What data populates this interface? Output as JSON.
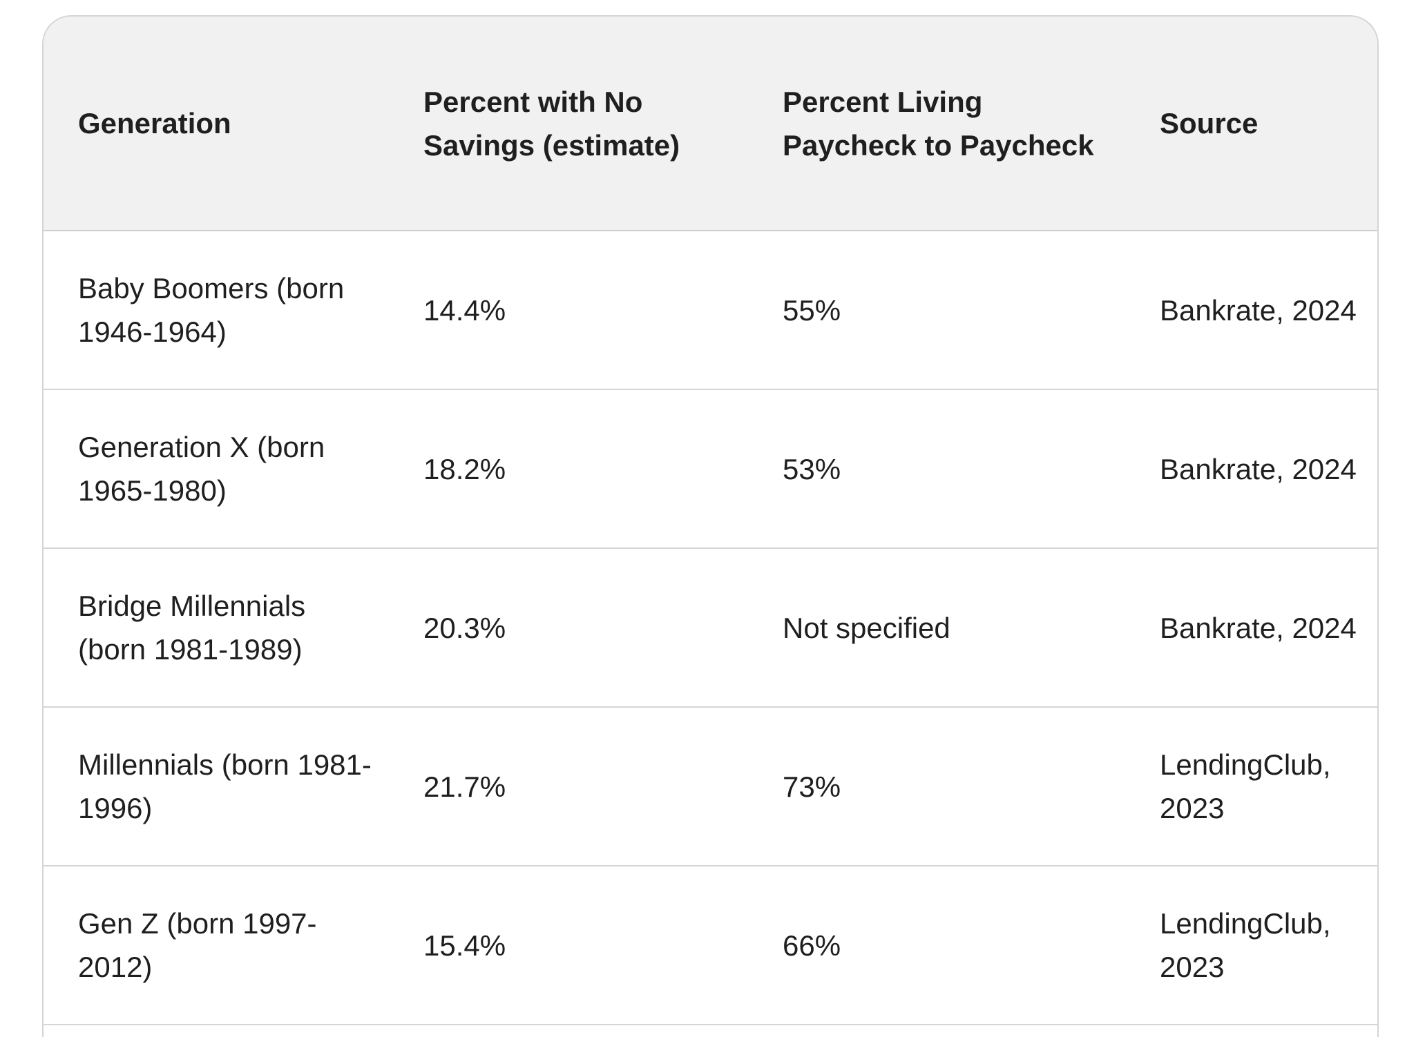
{
  "table": {
    "headers": [
      "Generation",
      "Percent with No Savings (estimate)",
      "Percent Living Paycheck to Paycheck",
      "Source"
    ],
    "rows": [
      [
        "Baby Boomers (born 1946-1964)",
        "14.4%",
        "55%",
        "Bankrate, 2024"
      ],
      [
        "Generation X (born 1965-1980)",
        "18.2%",
        "53%",
        "Bankrate, 2024"
      ],
      [
        "Bridge Millennials (born 1981-1989)",
        "20.3%",
        "Not specified",
        "Bankrate, 2024"
      ],
      [
        "Millennials (born 1981-1996)",
        "21.7%",
        "73%",
        "LendingClub, 2023"
      ],
      [
        "Gen Z (born 1997-2012)",
        "15.4%",
        "66%",
        "LendingClub, 2023"
      ]
    ]
  },
  "colors": {
    "header_background": "#f1f1f1",
    "border": "#d5d5d5",
    "text": "#1f1f1f"
  }
}
